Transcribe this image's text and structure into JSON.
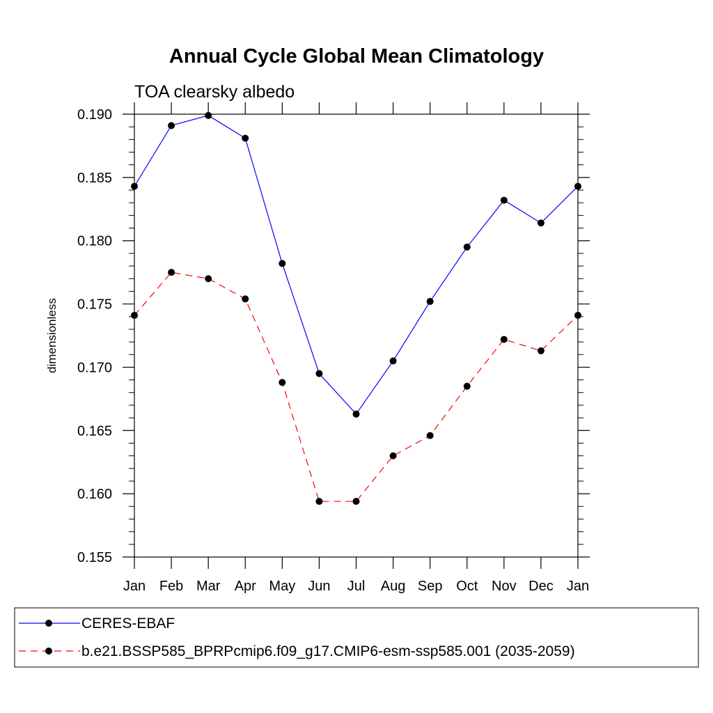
{
  "chart_data": {
    "type": "line",
    "title": "Annual Cycle Global Mean Climatology",
    "subtitle": "TOA clearsky albedo",
    "xlabel": "",
    "ylabel": "dimensionless",
    "categories": [
      "Jan",
      "Feb",
      "Mar",
      "Apr",
      "May",
      "Jun",
      "Jul",
      "Aug",
      "Sep",
      "Oct",
      "Nov",
      "Dec",
      "Jan"
    ],
    "ylim": [
      0.155,
      0.19
    ],
    "yticks": [
      "0.155",
      "0.160",
      "0.165",
      "0.170",
      "0.175",
      "0.180",
      "0.185",
      "0.190"
    ],
    "legend_position": "bottom",
    "series": [
      {
        "name": "CERES-EBAF",
        "color": "#0000ff",
        "dash": "solid",
        "values": [
          0.1843,
          0.1891,
          0.1899,
          0.1881,
          0.1782,
          0.1695,
          0.1663,
          0.1705,
          0.1752,
          0.1795,
          0.1832,
          0.1814,
          0.1843
        ]
      },
      {
        "name": "b.e21.BSSP585_BPRPcmip6.f09_g17.CMIP6-esm-ssp585.001 (2035-2059)",
        "color": "#ff0000",
        "dash": "dashed",
        "values": [
          0.1741,
          0.1775,
          0.177,
          0.1754,
          0.1688,
          0.1594,
          0.1594,
          0.163,
          0.1646,
          0.1685,
          0.1722,
          0.1713,
          0.1741
        ]
      }
    ]
  }
}
